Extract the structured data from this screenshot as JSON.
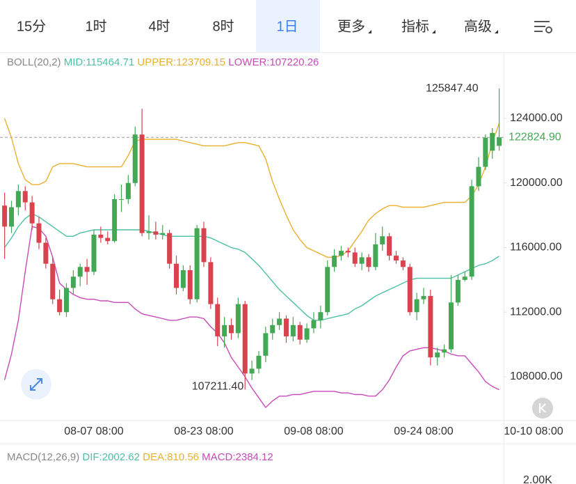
{
  "tabs": [
    "15分",
    "1时",
    "4时",
    "8时",
    "1日",
    "更多",
    "指标",
    "高级"
  ],
  "selected_tab": 4,
  "chart_data": {
    "type": "candlestick",
    "indicator": "BOLL(20,2)",
    "up_color": "#43a853",
    "down_color": "#d8434e",
    "open": [
      118600,
      117300,
      118500,
      119500,
      118800,
      117500,
      116300,
      115000,
      112800,
      112000,
      113500,
      114200,
      114800,
      114500,
      116800,
      116600,
      116400,
      119000,
      119000,
      120000,
      123000,
      116900,
      117000,
      116800,
      116900,
      115000,
      113500,
      114600,
      112800,
      117200,
      115100,
      112500,
      110500,
      111200,
      110700,
      112500,
      108200,
      108500,
      109300,
      110700,
      111200,
      111600,
      110500,
      111200,
      110300,
      111000,
      111500,
      112000,
      114800,
      115500,
      115800,
      115700,
      115000,
      115400,
      114800,
      116200,
      116700,
      115500,
      115200,
      114800,
      112000,
      112800,
      113000,
      109200,
      109500,
      109700,
      112600,
      114000,
      114200,
      119800,
      121000,
      122000,
      122300
    ],
    "high": [
      119400,
      118900,
      119900,
      119800,
      119200,
      117900,
      116600,
      115400,
      113400,
      113800,
      114600,
      115000,
      115300,
      117100,
      117300,
      117000,
      119300,
      119900,
      120500,
      123500,
      124600,
      118000,
      117600,
      117400,
      117100,
      115500,
      114900,
      114900,
      117400,
      117600,
      115400,
      112900,
      111700,
      111600,
      112900,
      112700,
      109000,
      109600,
      111100,
      111600,
      112000,
      111800,
      111700,
      111400,
      111300,
      112000,
      112400,
      115200,
      115900,
      116100,
      116000,
      116000,
      115700,
      115600,
      116900,
      117300,
      116900,
      115800,
      115400,
      115000,
      113200,
      113500,
      113400,
      109800,
      110000,
      114300,
      114300,
      114500,
      120200,
      121600,
      123000,
      123400,
      125847.4
    ],
    "low": [
      115300,
      116900,
      118000,
      118300,
      117100,
      115900,
      114700,
      112500,
      111800,
      111700,
      113100,
      113600,
      113700,
      114300,
      116300,
      116200,
      116300,
      118200,
      118700,
      119800,
      116700,
      116500,
      116500,
      116500,
      114700,
      113100,
      113300,
      112500,
      112600,
      114800,
      112200,
      109900,
      109800,
      110300,
      110400,
      107211.4,
      107800,
      108200,
      108900,
      110300,
      110900,
      110100,
      110200,
      110000,
      110100,
      110700,
      111000,
      111800,
      114500,
      115200,
      115400,
      114800,
      114600,
      114500,
      114600,
      115800,
      115200,
      115000,
      114600,
      111800,
      111500,
      112500,
      108700,
      108700,
      109200,
      109500,
      112400,
      113900,
      114000,
      119500,
      120800,
      121500,
      122000
    ],
    "close": [
      117300,
      118500,
      119500,
      118800,
      117500,
      116300,
      115000,
      112800,
      112000,
      113500,
      114200,
      114800,
      114500,
      116800,
      116600,
      116400,
      119000,
      119000,
      120000,
      123000,
      116900,
      117000,
      116800,
      116900,
      115000,
      113500,
      114600,
      112800,
      117200,
      115100,
      112500,
      110500,
      111200,
      110700,
      112500,
      108200,
      108500,
      109300,
      110700,
      111200,
      111600,
      110500,
      111200,
      110300,
      111000,
      111500,
      112000,
      114800,
      115500,
      115800,
      115700,
      115000,
      115400,
      114800,
      116200,
      116700,
      115500,
      115200,
      114800,
      112000,
      112800,
      113000,
      109200,
      109500,
      109700,
      112600,
      114000,
      114200,
      119800,
      121000,
      122800,
      123100,
      122824.9
    ],
    "series": [
      {
        "name": "MID:115464.71",
        "color": "#4cc1a2",
        "values": [
          116000,
          116600,
          117300,
          117800,
          118100,
          117900,
          117600,
          117300,
          117000,
          116700,
          116700,
          116900,
          117000,
          117100,
          117100,
          117100,
          117100,
          117100,
          117100,
          117100,
          117100,
          117000,
          116900,
          116800,
          116700,
          116700,
          116700,
          116700,
          116700,
          116700,
          116600,
          116400,
          116200,
          116000,
          115900,
          115700,
          115300,
          114900,
          114400,
          113900,
          113400,
          113000,
          112600,
          112200,
          111800,
          111500,
          111500,
          111600,
          111700,
          111800,
          111900,
          112200,
          112400,
          112700,
          113000,
          113200,
          113400,
          113600,
          113800,
          114000,
          114100,
          114100,
          114100,
          114100,
          114100,
          114100,
          114300,
          114500,
          114700,
          114900,
          115000,
          115200,
          115465
        ]
      },
      {
        "name": "UPPER:123709.15",
        "color": "#e9b02e",
        "values": [
          124000,
          122800,
          121200,
          120200,
          119900,
          119900,
          120100,
          121000,
          121200,
          121200,
          121200,
          121100,
          121000,
          121000,
          121000,
          121000,
          121000,
          121000,
          121700,
          122600,
          122700,
          122700,
          122700,
          122700,
          122700,
          122700,
          122600,
          122500,
          122400,
          122300,
          122300,
          122300,
          122300,
          122400,
          122500,
          122500,
          122400,
          122300,
          121500,
          120100,
          119000,
          118000,
          117100,
          116500,
          116000,
          115800,
          115600,
          115400,
          115400,
          115500,
          115800,
          116400,
          117000,
          117700,
          118100,
          118400,
          118600,
          118600,
          118500,
          118500,
          118500,
          118500,
          118600,
          118700,
          118800,
          118800,
          118800,
          118800,
          119200,
          119900,
          121000,
          122500,
          123700
        ]
      },
      {
        "name": "LOWER:107220.26",
        "color": "#c74ab9",
        "values": [
          107800,
          109400,
          111500,
          114500,
          117300,
          117200,
          116700,
          115400,
          113800,
          113400,
          113100,
          112900,
          112800,
          112800,
          112700,
          112700,
          112600,
          112600,
          112600,
          112200,
          111900,
          111800,
          111700,
          111600,
          111500,
          111500,
          111600,
          111700,
          111700,
          111600,
          111100,
          110700,
          110100,
          109200,
          108600,
          108000,
          107300,
          106700,
          106100,
          106500,
          106800,
          106800,
          106900,
          106900,
          107000,
          107100,
          107100,
          107100,
          107100,
          107000,
          107000,
          106900,
          106900,
          106800,
          106800,
          107200,
          107800,
          108600,
          109300,
          109600,
          109700,
          109800,
          109800,
          109700,
          109600,
          109400,
          109300,
          109300,
          108800,
          108300,
          107700,
          107400,
          107200
        ]
      }
    ],
    "ylim": [
      105456,
      127019
    ],
    "yticks": [
      {
        "value": 108000,
        "label": "108000.00"
      },
      {
        "value": 112000,
        "label": "112000.00"
      },
      {
        "value": 116000,
        "label": "116000.00"
      },
      {
        "value": 120000,
        "label": "120000.00"
      },
      {
        "value": 124000,
        "label": "124000.00"
      }
    ],
    "xlim": [
      -0.67,
      83.18
    ],
    "xticks": [
      {
        "value": 13,
        "label": "08-07 08:00"
      },
      {
        "value": 29,
        "label": "08-23 08:00"
      },
      {
        "value": 45,
        "label": "09-08 08:00"
      },
      {
        "value": 61,
        "label": "09-24 08:00"
      },
      {
        "value": 77,
        "label": "10-10 08:00"
      }
    ],
    "last_price": {
      "value": 122824.9,
      "label": "122824.90"
    },
    "max_label": "125847.40",
    "min_label": "107211.40"
  },
  "macd": {
    "title": "MACD(12,26,9)",
    "items": [
      {
        "text": "DIF:2002.62",
        "color": "#4cc1a2"
      },
      {
        "text": "DEA:810.56",
        "color": "#e9b02e"
      },
      {
        "text": "MACD:2384.12",
        "color": "#c74ab9"
      }
    ],
    "tick": "2.00K"
  }
}
